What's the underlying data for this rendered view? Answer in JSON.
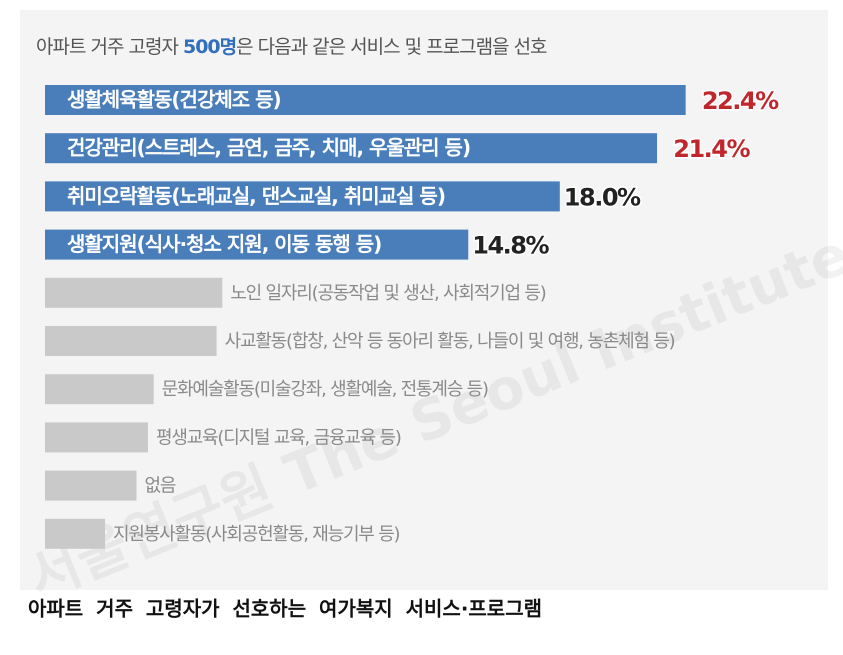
{
  "chart_data": {
    "type": "bar",
    "orientation": "horizontal",
    "title_parts": [
      "아파트 거주 고령자 ",
      "500명",
      "은 다음과 같은 서비스 및 프로그램을 선호"
    ],
    "title_highlight_color": "#2f6fbd",
    "caption": "아파트 거주 고령자가 선호하는 여가복지 서비스·프로그램",
    "watermark": "서울연구원 The Seoul Institute",
    "categories": [
      "생활체육활동(건강체조 등)",
      "건강관리(스트레스, 금연, 금주, 치매, 우울관리 등)",
      "취미오락활동(노래교실, 댄스교실, 취미교실 등)",
      "생활지원(식사·청소 지원, 이동 동행 등)",
      "노인 일자리(공동작업 및 생산, 사회적기업 등)",
      "사교활동(합창, 산악 등 동아리 활동, 나들이 및 여행, 농촌체험 등)",
      "문화예술활동(미술강좌, 생활예술, 전통계승 등)",
      "평생교육(디지털 교육, 금융교육 등)",
      "없음",
      "지원봉사활동(사회공헌활동, 재능기부 등)"
    ],
    "values": [
      22.4,
      21.4,
      18.0,
      14.8,
      6.2,
      6.0,
      3.8,
      3.6,
      3.2,
      2.1
    ],
    "value_labels": [
      "22.4%",
      "21.4%",
      "18.0%",
      "14.8%",
      null,
      null,
      null,
      null,
      null,
      null
    ],
    "colors": [
      "#4a7ebb",
      "#4a7ebb",
      "#4a7ebb",
      "#4a7ebb",
      "#c9c9c9",
      "#c9c9c9",
      "#c9c9c9",
      "#c9c9c9",
      "#c9c9c9",
      "#c9c9c9"
    ],
    "value_label_colors": [
      "#c0272d",
      "#c0272d",
      "#222222",
      "#222222",
      null,
      null,
      null,
      null,
      null,
      null
    ]
  }
}
